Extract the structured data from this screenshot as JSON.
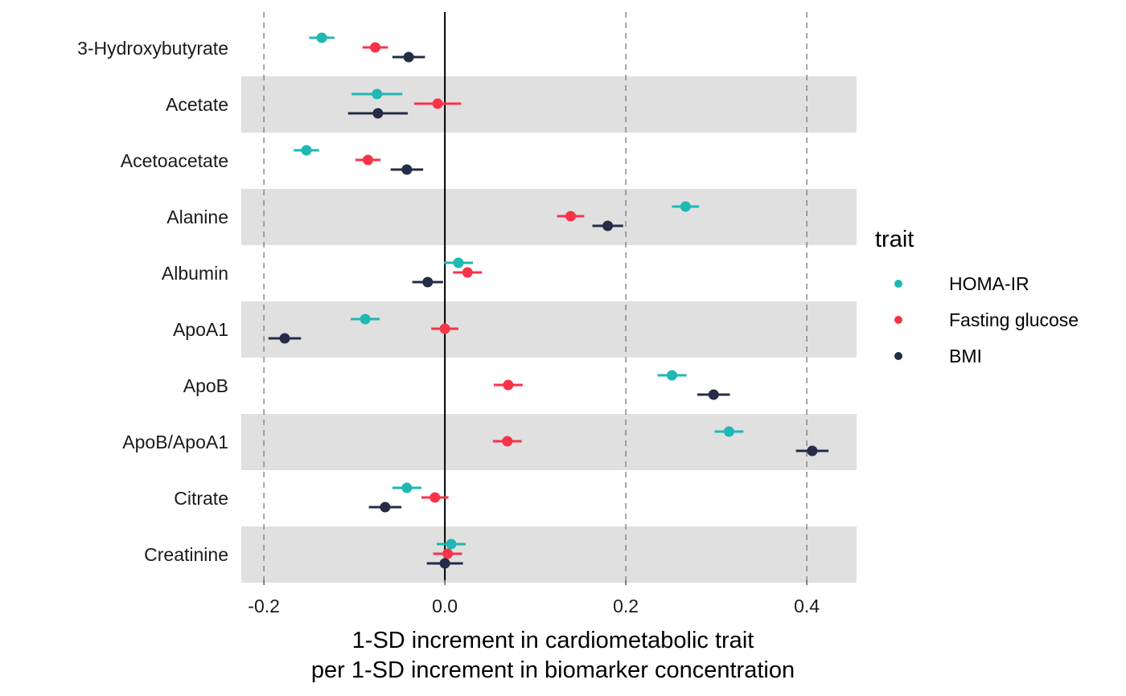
{
  "chart_data": {
    "type": "scatter",
    "subtype": "forest-plot",
    "title": "",
    "xlabel_lines": [
      "1-SD increment in cardiometabolic trait",
      "per 1-SD increment in biomarker concentration"
    ],
    "ylabel": "",
    "xlim": [
      -0.225,
      0.455
    ],
    "x_ticks": [
      -0.2,
      0.0,
      0.2,
      0.4
    ],
    "x_tick_labels": [
      "-0.2",
      "0.0",
      "0.2",
      "0.4"
    ],
    "dashed_reference_lines": [
      -0.2,
      0.2,
      0.4
    ],
    "solid_reference_line": 0.0,
    "alternating_row_bands": true,
    "legend": {
      "title": "trait",
      "position": "right"
    },
    "categories": [
      "3-Hydroxybutyrate",
      "Acetate",
      "Acetoacetate",
      "Alanine",
      "Albumin",
      "ApoA1",
      "ApoB",
      "ApoB/ApoA1",
      "Citrate",
      "Creatinine"
    ],
    "series": [
      {
        "name": "HOMA-IR",
        "color": "#1fb8b2",
        "estimates": [
          -0.136,
          -0.075,
          -0.153,
          0.266,
          0.015,
          -0.088,
          0.251,
          0.314,
          -0.042,
          0.007
        ],
        "lower": [
          -0.15,
          -0.103,
          -0.167,
          0.251,
          -0.001,
          -0.104,
          0.235,
          0.298,
          -0.058,
          -0.009
        ],
        "upper": [
          -0.122,
          -0.047,
          -0.139,
          0.281,
          0.031,
          -0.072,
          0.267,
          0.33,
          -0.026,
          0.023
        ]
      },
      {
        "name": "Fasting glucose",
        "color": "#f7334a",
        "estimates": [
          -0.077,
          -0.008,
          -0.085,
          0.139,
          0.025,
          0.0,
          0.07,
          0.069,
          -0.011,
          0.003
        ],
        "lower": [
          -0.091,
          -0.034,
          -0.099,
          0.124,
          0.009,
          -0.015,
          0.054,
          0.053,
          -0.026,
          -0.013
        ],
        "upper": [
          -0.063,
          0.018,
          -0.071,
          0.154,
          0.041,
          0.015,
          0.086,
          0.085,
          0.004,
          0.019
        ]
      },
      {
        "name": "BMI",
        "color": "#242c47",
        "estimates": [
          -0.04,
          -0.074,
          -0.042,
          0.18,
          -0.019,
          -0.177,
          0.297,
          0.406,
          -0.066,
          0.0
        ],
        "lower": [
          -0.058,
          -0.107,
          -0.06,
          0.163,
          -0.036,
          -0.195,
          0.279,
          0.388,
          -0.084,
          -0.02
        ],
        "upper": [
          -0.022,
          -0.041,
          -0.024,
          0.197,
          -0.002,
          -0.159,
          0.315,
          0.424,
          -0.048,
          0.02
        ]
      }
    ]
  }
}
